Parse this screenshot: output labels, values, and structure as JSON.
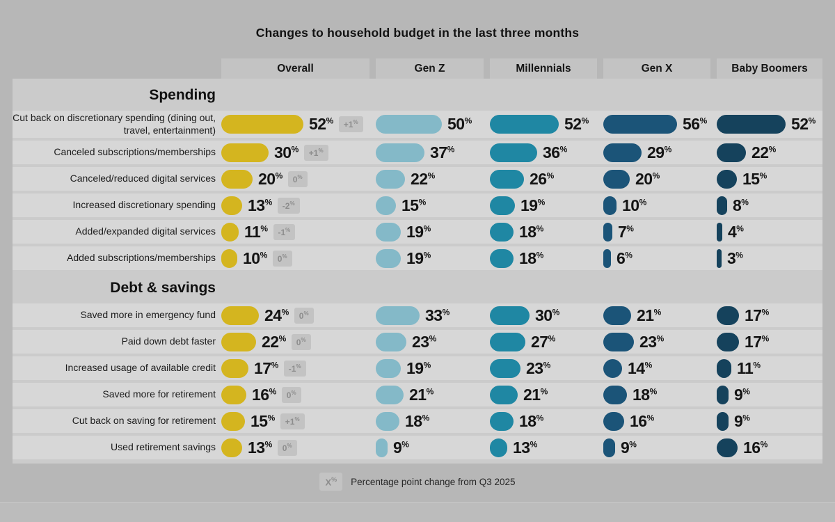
{
  "title": "Changes to household budget in the last three months",
  "legend": {
    "badge_x": "X",
    "text": "Percentage point change from Q3 2025"
  },
  "columns": [
    {
      "id": "overall",
      "label": "Overall",
      "color": "#d4b51f"
    },
    {
      "id": "genz",
      "label": "Gen Z",
      "color": "#84b9c8"
    },
    {
      "id": "millennials",
      "label": "Millennials",
      "color": "#1f87a3"
    },
    {
      "id": "genx",
      "label": "Gen X",
      "color": "#1b5478"
    },
    {
      "id": "boomers",
      "label": "Baby Boomers",
      "color": "#15425c"
    }
  ],
  "chart_data": {
    "type": "bar",
    "title": "Changes to household budget in the last three months",
    "unit": "%",
    "value_range": [
      0,
      56
    ],
    "legend_position": "bottom",
    "note": "Gray badges next to Overall bars show percentage point change from Q3 2025",
    "categories": [
      "Overall",
      "Gen Z",
      "Millennials",
      "Gen X",
      "Baby Boomers"
    ],
    "sections": [
      {
        "name": "Spending",
        "rows": [
          {
            "label": "Cut back on discretionary spending (dining out, travel, entertainment)",
            "values": {
              "overall": 52,
              "genz": 50,
              "millennials": 52,
              "genx": 56,
              "boomers": 52
            },
            "overall_change": "+1"
          },
          {
            "label": "Canceled subscriptions/memberships",
            "values": {
              "overall": 30,
              "genz": 37,
              "millennials": 36,
              "genx": 29,
              "boomers": 22
            },
            "overall_change": "+1"
          },
          {
            "label": "Canceled/reduced digital services",
            "values": {
              "overall": 20,
              "genz": 22,
              "millennials": 26,
              "genx": 20,
              "boomers": 15
            },
            "overall_change": "0"
          },
          {
            "label": "Increased discretionary spending",
            "values": {
              "overall": 13,
              "genz": 15,
              "millennials": 19,
              "genx": 10,
              "boomers": 8
            },
            "overall_change": "-2"
          },
          {
            "label": "Added/expanded digital services",
            "values": {
              "overall": 11,
              "genz": 19,
              "millennials": 18,
              "genx": 7,
              "boomers": 4
            },
            "overall_change": "-1"
          },
          {
            "label": "Added subscriptions/memberships",
            "values": {
              "overall": 10,
              "genz": 19,
              "millennials": 18,
              "genx": 6,
              "boomers": 3
            },
            "overall_change": "0"
          }
        ]
      },
      {
        "name": "Debt & savings",
        "rows": [
          {
            "label": "Saved more in emergency fund",
            "values": {
              "overall": 24,
              "genz": 33,
              "millennials": 30,
              "genx": 21,
              "boomers": 17
            },
            "overall_change": "0"
          },
          {
            "label": "Paid down debt faster",
            "values": {
              "overall": 22,
              "genz": 23,
              "millennials": 27,
              "genx": 23,
              "boomers": 17
            },
            "overall_change": "0"
          },
          {
            "label": "Increased usage of available credit",
            "values": {
              "overall": 17,
              "genz": 19,
              "millennials": 23,
              "genx": 14,
              "boomers": 11
            },
            "overall_change": "-1"
          },
          {
            "label": "Saved more for retirement",
            "values": {
              "overall": 16,
              "genz": 21,
              "millennials": 21,
              "genx": 18,
              "boomers": 9
            },
            "overall_change": "0"
          },
          {
            "label": "Cut back on saving for retirement",
            "values": {
              "overall": 15,
              "genz": 18,
              "millennials": 18,
              "genx": 16,
              "boomers": 9
            },
            "overall_change": "+1"
          },
          {
            "label": "Used retirement savings",
            "values": {
              "overall": 13,
              "genz": 9,
              "millennials": 13,
              "genx": 9,
              "boomers": 16
            },
            "overall_change": "0"
          }
        ]
      }
    ]
  }
}
